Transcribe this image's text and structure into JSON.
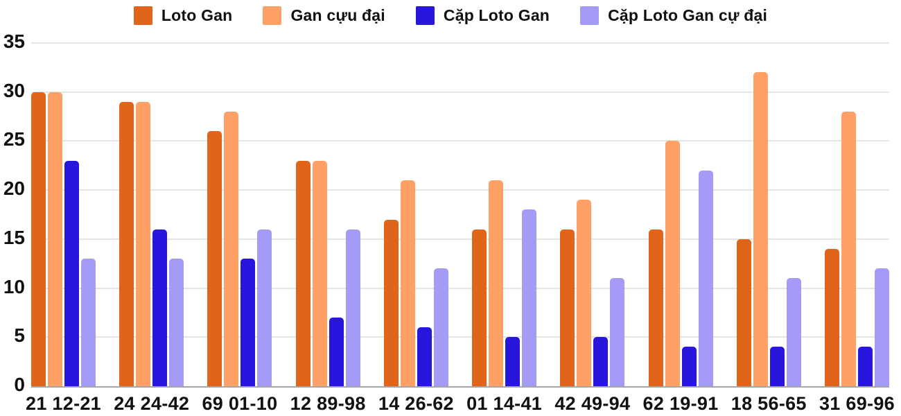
{
  "chart_data": {
    "type": "bar",
    "title": "",
    "xlabel": "",
    "ylabel": "",
    "categories": [
      "21 12-21",
      "24 24-42",
      "69 01-10",
      "12 89-98",
      "14 26-62",
      "01 14-41",
      "42 49-94",
      "62 19-91",
      "18 56-65",
      "31 69-96"
    ],
    "series": [
      {
        "name": "Loto Gan",
        "color": "#e0641a",
        "values": [
          30,
          29,
          26,
          23,
          17,
          16,
          16,
          16,
          15,
          14
        ]
      },
      {
        "name": "Gan cựu đại",
        "color": "#ffa167",
        "values": [
          30,
          29,
          28,
          23,
          21,
          21,
          19,
          25,
          32,
          28
        ]
      },
      {
        "name": "Cặp Loto Gan",
        "color": "#2916dd",
        "values": [
          23,
          16,
          13,
          7,
          6,
          5,
          5,
          4,
          4,
          4
        ]
      },
      {
        "name": "Cặp Loto Gan cự đại",
        "color": "#a39bf5",
        "values": [
          13,
          13,
          16,
          16,
          12,
          18,
          11,
          22,
          11,
          12
        ]
      }
    ],
    "ylim": [
      0,
      35
    ],
    "yticks": [
      0,
      5,
      10,
      15,
      20,
      25,
      30,
      35
    ],
    "grid": true,
    "legend_position": "top",
    "axis_color": "#a6a6a6",
    "grid_color": "#e4e4e4",
    "text_color": "#111111"
  }
}
